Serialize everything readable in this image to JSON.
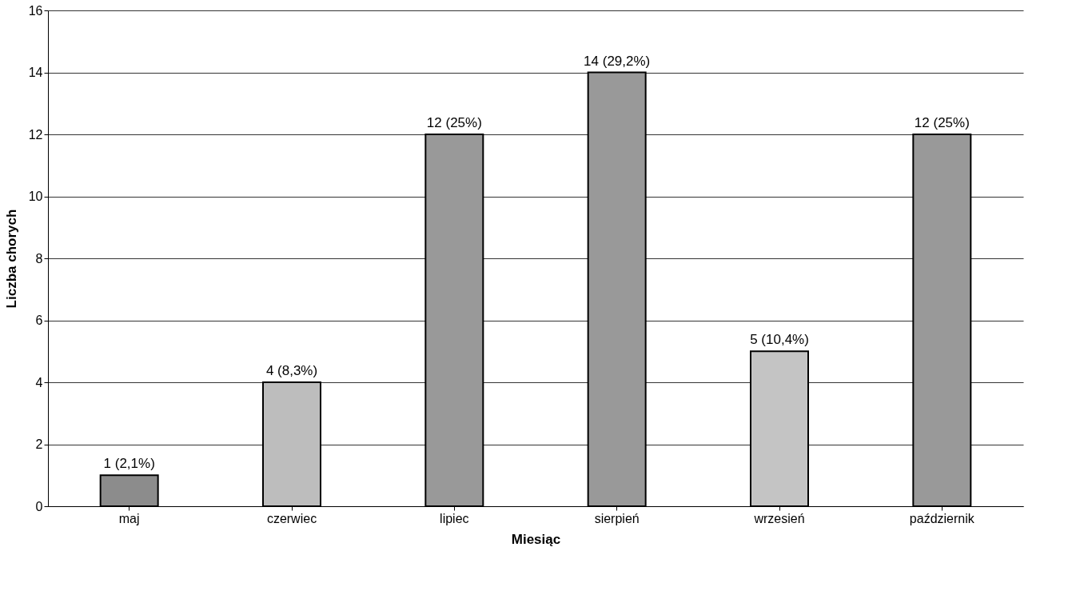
{
  "chart_data": {
    "type": "bar",
    "xlabel": "Miesiąc",
    "ylabel": "Liczba chorych",
    "categories": [
      "maj",
      "czerwiec",
      "lipiec",
      "sierpień",
      "wrzesień",
      "październik"
    ],
    "values": [
      1,
      4,
      12,
      14,
      5,
      12
    ],
    "colors": [
      "#8c8c8c",
      "#bdbdbd",
      "#999999",
      "#999999",
      "#c4c4c4",
      "#999999"
    ],
    "value_labels": [
      "1 (2,1%)",
      "4 (8,3%)",
      "12 (25%)",
      "14 (29,2%)",
      "5 (10,4%)",
      "12 (25%)"
    ],
    "ylim": [
      0,
      16
    ],
    "yticks": [
      0,
      2,
      4,
      6,
      8,
      10,
      12,
      14,
      16
    ],
    "grid": "y"
  }
}
